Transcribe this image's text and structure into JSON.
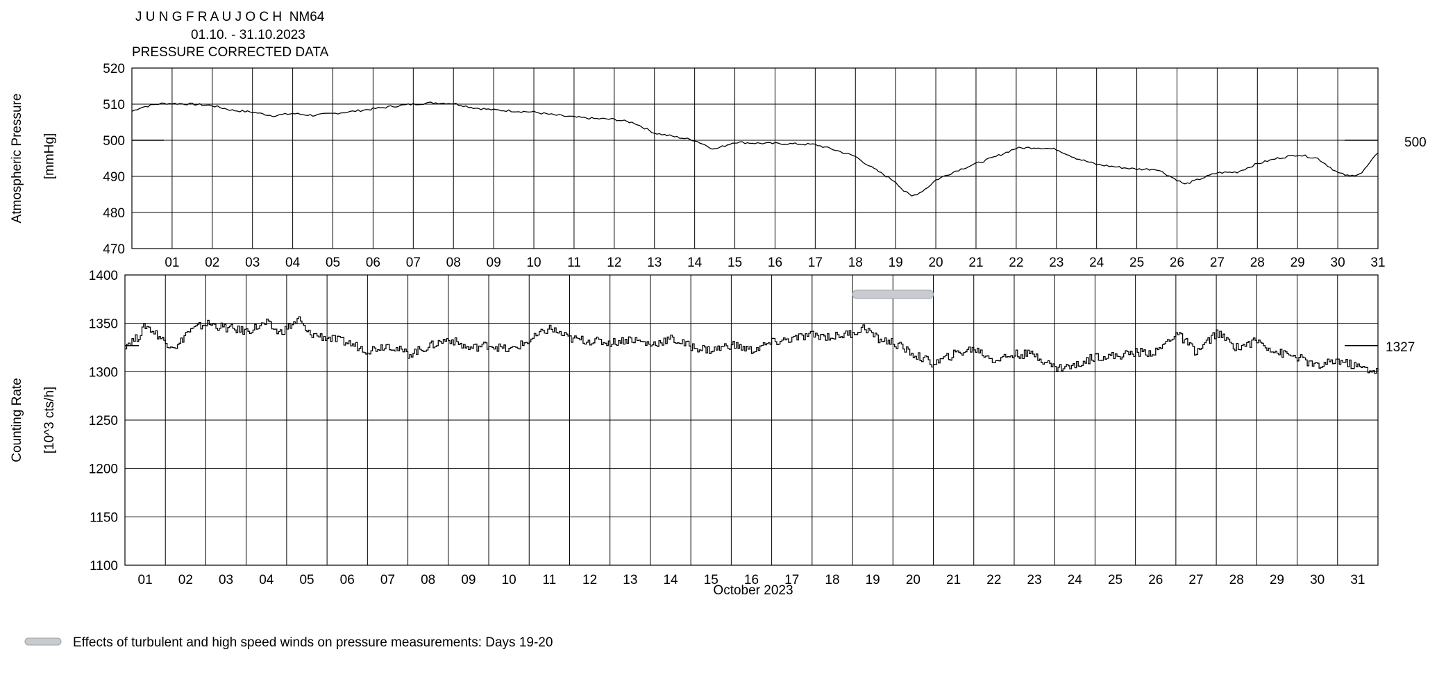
{
  "header": {
    "station": "J U N G F R A U J O C H  NM64",
    "period": "01.10. - 31.10.2023",
    "subtitle": "PRESSURE CORRECTED DATA"
  },
  "footer": {
    "legend_text": "Effects of turbulent and high speed winds on pressure measurements: Days 19-20"
  },
  "chart_data": [
    {
      "type": "line",
      "title": "",
      "ylabel": "Atmospheric Pressure",
      "yunit": "[mmHg]",
      "xlabel": "",
      "ylim": [
        470,
        520
      ],
      "yticks": [
        470,
        480,
        490,
        500,
        510,
        520
      ],
      "xlim": [
        0,
        31
      ],
      "xtick_labels": [
        "01",
        "02",
        "03",
        "04",
        "05",
        "06",
        "07",
        "08",
        "09",
        "10",
        "11",
        "12",
        "13",
        "14",
        "15",
        "16",
        "17",
        "18",
        "19",
        "20",
        "21",
        "22",
        "23",
        "24",
        "25",
        "26",
        "27",
        "28",
        "29",
        "30",
        "31"
      ],
      "xtick_position": "day-start",
      "reference": {
        "value": 500,
        "label": "500"
      },
      "grid": true,
      "series": [
        {
          "x": [
            0,
            0.2,
            0.4,
            0.6,
            0.8,
            1,
            1.5,
            2,
            2.5,
            3,
            3.5,
            4,
            4.5,
            5,
            5.5,
            6,
            6.5,
            7,
            7.5,
            8,
            8.5,
            9,
            9.5,
            10,
            10.5,
            11,
            11.5,
            12,
            12.5,
            13,
            13.5,
            14,
            14.5,
            15,
            15.5,
            16,
            16.5,
            17,
            17.5,
            18,
            18.4,
            18.7,
            19,
            19.2,
            19.4,
            19.6,
            19.8,
            20,
            20.5,
            21,
            21.5,
            22,
            22.5,
            23,
            23.5,
            24,
            24.5,
            25,
            25.5,
            26,
            26.2,
            26.5,
            27,
            27.5,
            28,
            28.5,
            29,
            29.5,
            30,
            30.3,
            30.6,
            31
          ],
          "values": [
            508,
            509,
            509.5,
            510,
            510.2,
            510.2,
            510,
            509.6,
            508.3,
            507.8,
            506.8,
            507.4,
            506.9,
            507.4,
            508,
            508.7,
            509.4,
            510,
            510.4,
            510.2,
            509,
            508.4,
            508.1,
            507.8,
            507,
            506.4,
            506,
            505.8,
            504.8,
            502,
            501,
            500,
            497.5,
            499.5,
            499.2,
            499.1,
            499,
            498.8,
            497.3,
            495.5,
            492.5,
            490.5,
            488.5,
            486,
            484.5,
            485.5,
            487,
            489,
            491.5,
            493.5,
            495.5,
            497.8,
            498,
            497.5,
            495,
            493.3,
            492.6,
            492,
            492,
            489,
            487.8,
            489,
            491,
            491.2,
            493.5,
            495,
            496,
            495,
            491,
            490,
            491,
            496.5
          ]
        }
      ]
    },
    {
      "type": "line",
      "title": "",
      "ylabel": "Counting Rate",
      "yunit": "[10^3 cts/h]",
      "xlabel": "October 2023",
      "ylim": [
        1100,
        1400
      ],
      "yticks": [
        1100,
        1150,
        1200,
        1250,
        1300,
        1350,
        1400
      ],
      "xlim": [
        0,
        31
      ],
      "xtick_labels": [
        "01",
        "02",
        "03",
        "04",
        "05",
        "06",
        "07",
        "08",
        "09",
        "10",
        "11",
        "12",
        "13",
        "14",
        "15",
        "16",
        "17",
        "18",
        "19",
        "20",
        "21",
        "22",
        "23",
        "24",
        "25",
        "26",
        "27",
        "28",
        "29",
        "30",
        "31"
      ],
      "xtick_position": "day-center",
      "reference": {
        "value": 1327,
        "label": "1327"
      },
      "annotation": {
        "type": "wind-effect-bar",
        "x_start": 18,
        "x_end": 20,
        "y": 1380
      },
      "grid": true,
      "series": [
        {
          "x": [
            0,
            0.3,
            0.5,
            0.8,
            1,
            1.3,
            1.5,
            2,
            2.5,
            3,
            3.5,
            3.8,
            4,
            4.3,
            4.5,
            5,
            5.5,
            6,
            6.5,
            7,
            7.5,
            8,
            8.5,
            9,
            9.5,
            10,
            10.5,
            11,
            11.5,
            12,
            12.5,
            13,
            13.5,
            14,
            14.5,
            15,
            15.5,
            16,
            16.5,
            17,
            17.5,
            18,
            18.3,
            18.6,
            19,
            19.5,
            20,
            20.5,
            21,
            21.5,
            22,
            22.5,
            23,
            23.5,
            24,
            24.5,
            25,
            25.5,
            26,
            26.5,
            27,
            27.5,
            28,
            28.5,
            29,
            29.5,
            30,
            30.5,
            31
          ],
          "values": [
            1328,
            1335,
            1348,
            1338,
            1330,
            1326,
            1340,
            1350,
            1345,
            1342,
            1350,
            1340,
            1345,
            1354,
            1340,
            1335,
            1330,
            1322,
            1328,
            1318,
            1326,
            1334,
            1324,
            1328,
            1322,
            1332,
            1345,
            1334,
            1332,
            1330,
            1334,
            1328,
            1334,
            1326,
            1322,
            1328,
            1322,
            1330,
            1334,
            1338,
            1336,
            1340,
            1346,
            1334,
            1330,
            1318,
            1308,
            1318,
            1324,
            1312,
            1318,
            1318,
            1304,
            1306,
            1316,
            1316,
            1320,
            1320,
            1340,
            1320,
            1340,
            1325,
            1332,
            1320,
            1315,
            1305,
            1312,
            1305,
            1300
          ]
        }
      ]
    }
  ]
}
